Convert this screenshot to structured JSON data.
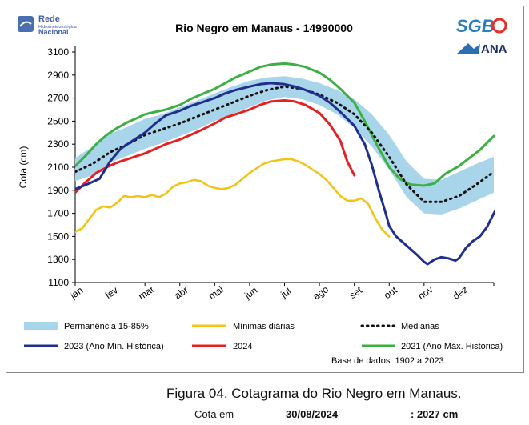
{
  "chart_data": {
    "type": "line",
    "title": "Rio Negro em Manaus - 14990000",
    "ylabel": "Cota (cm)",
    "xlabel": "",
    "ylim": [
      1100,
      3100
    ],
    "yticks": [
      1100,
      1300,
      1500,
      1700,
      1900,
      2100,
      2300,
      2500,
      2700,
      2900,
      3100
    ],
    "categories": [
      "jan",
      "fev",
      "mar",
      "abr",
      "mai",
      "jun",
      "jul",
      "ago",
      "set",
      "out",
      "nov",
      "dez"
    ],
    "grid": false,
    "legend_position": "bottom",
    "base_note": "Base de dados: 1902 a 2023",
    "band": {
      "name": "Permanência 15-85%",
      "color": "#a9d5ea",
      "upper": [
        [
          0,
          2180
        ],
        [
          0.5,
          2280
        ],
        [
          1,
          2390
        ],
        [
          1.5,
          2450
        ],
        [
          2,
          2520
        ],
        [
          2.5,
          2560
        ],
        [
          3,
          2620
        ],
        [
          3.5,
          2680
        ],
        [
          4,
          2740
        ],
        [
          4.5,
          2800
        ],
        [
          5,
          2850
        ],
        [
          5.5,
          2880
        ],
        [
          6,
          2890
        ],
        [
          6.5,
          2870
        ],
        [
          7,
          2830
        ],
        [
          7.5,
          2770
        ],
        [
          8,
          2690
        ],
        [
          8.5,
          2560
        ],
        [
          9,
          2380
        ],
        [
          9.5,
          2150
        ],
        [
          10,
          2000
        ],
        [
          10.5,
          1990
        ],
        [
          11,
          2060
        ],
        [
          11.5,
          2130
        ],
        [
          12,
          2190
        ]
      ],
      "lower": [
        [
          0,
          1980
        ],
        [
          0.5,
          2030
        ],
        [
          1,
          2140
        ],
        [
          1.5,
          2200
        ],
        [
          2,
          2260
        ],
        [
          2.5,
          2310
        ],
        [
          3,
          2370
        ],
        [
          3.5,
          2430
        ],
        [
          4,
          2500
        ],
        [
          4.5,
          2560
        ],
        [
          5,
          2620
        ],
        [
          5.5,
          2680
        ],
        [
          6,
          2710
        ],
        [
          6.5,
          2690
        ],
        [
          7,
          2640
        ],
        [
          7.5,
          2560
        ],
        [
          8,
          2440
        ],
        [
          8.5,
          2280
        ],
        [
          9,
          2080
        ],
        [
          9.5,
          1840
        ],
        [
          10,
          1700
        ],
        [
          10.5,
          1690
        ],
        [
          11,
          1740
        ],
        [
          11.5,
          1810
        ],
        [
          12,
          1880
        ]
      ]
    },
    "series": [
      {
        "name": "Mínimas diárias",
        "color": "#f0c419",
        "width": 2.6,
        "points": [
          [
            0,
            1540
          ],
          [
            0.2,
            1570
          ],
          [
            0.4,
            1650
          ],
          [
            0.6,
            1730
          ],
          [
            0.8,
            1760
          ],
          [
            1,
            1750
          ],
          [
            1.2,
            1790
          ],
          [
            1.4,
            1850
          ],
          [
            1.6,
            1840
          ],
          [
            1.8,
            1850
          ],
          [
            2,
            1840
          ],
          [
            2.2,
            1860
          ],
          [
            2.4,
            1840
          ],
          [
            2.6,
            1870
          ],
          [
            2.8,
            1930
          ],
          [
            3,
            1960
          ],
          [
            3.2,
            1970
          ],
          [
            3.4,
            1990
          ],
          [
            3.6,
            1980
          ],
          [
            3.8,
            1940
          ],
          [
            4,
            1920
          ],
          [
            4.2,
            1910
          ],
          [
            4.4,
            1920
          ],
          [
            4.6,
            1950
          ],
          [
            4.8,
            2000
          ],
          [
            5,
            2050
          ],
          [
            5.2,
            2090
          ],
          [
            5.4,
            2130
          ],
          [
            5.6,
            2150
          ],
          [
            5.8,
            2160
          ],
          [
            6,
            2170
          ],
          [
            6.2,
            2170
          ],
          [
            6.4,
            2150
          ],
          [
            6.6,
            2120
          ],
          [
            6.8,
            2080
          ],
          [
            7,
            2040
          ],
          [
            7.2,
            1990
          ],
          [
            7.4,
            1920
          ],
          [
            7.6,
            1850
          ],
          [
            7.8,
            1810
          ],
          [
            8,
            1810
          ],
          [
            8.2,
            1830
          ],
          [
            8.4,
            1780
          ],
          [
            8.6,
            1660
          ],
          [
            8.8,
            1560
          ],
          [
            9,
            1500
          ]
        ]
      },
      {
        "name": "Medianas",
        "color": "#111111",
        "width": 3,
        "dash": "1.5 5",
        "points": [
          [
            0,
            2060
          ],
          [
            0.5,
            2130
          ],
          [
            1,
            2230
          ],
          [
            1.5,
            2300
          ],
          [
            2,
            2380
          ],
          [
            2.5,
            2430
          ],
          [
            3,
            2480
          ],
          [
            3.5,
            2540
          ],
          [
            4,
            2600
          ],
          [
            4.5,
            2660
          ],
          [
            5,
            2720
          ],
          [
            5.5,
            2770
          ],
          [
            6,
            2800
          ],
          [
            6.5,
            2780
          ],
          [
            7,
            2730
          ],
          [
            7.5,
            2660
          ],
          [
            8,
            2560
          ],
          [
            8.5,
            2400
          ],
          [
            9,
            2190
          ],
          [
            9.5,
            1950
          ],
          [
            10,
            1800
          ],
          [
            10.5,
            1800
          ],
          [
            11,
            1850
          ],
          [
            11.5,
            1950
          ],
          [
            12,
            2060
          ]
        ]
      },
      {
        "name": "2023 (Ano Mín. Histórica)",
        "color": "#1f2f8f",
        "width": 3,
        "points": [
          [
            0,
            1910
          ],
          [
            0.4,
            1960
          ],
          [
            0.7,
            2000
          ],
          [
            1,
            2150
          ],
          [
            1.3,
            2260
          ],
          [
            1.6,
            2320
          ],
          [
            2,
            2400
          ],
          [
            2.3,
            2480
          ],
          [
            2.6,
            2550
          ],
          [
            3,
            2590
          ],
          [
            3.3,
            2630
          ],
          [
            3.6,
            2660
          ],
          [
            4,
            2700
          ],
          [
            4.3,
            2740
          ],
          [
            4.6,
            2770
          ],
          [
            5,
            2800
          ],
          [
            5.3,
            2820
          ],
          [
            5.6,
            2830
          ],
          [
            6,
            2820
          ],
          [
            6.3,
            2800
          ],
          [
            6.6,
            2770
          ],
          [
            7,
            2720
          ],
          [
            7.3,
            2660
          ],
          [
            7.6,
            2580
          ],
          [
            8,
            2460
          ],
          [
            8.3,
            2300
          ],
          [
            8.5,
            2120
          ],
          [
            8.7,
            1900
          ],
          [
            8.9,
            1700
          ],
          [
            9,
            1590
          ],
          [
            9.2,
            1500
          ],
          [
            9.5,
            1420
          ],
          [
            9.8,
            1340
          ],
          [
            10,
            1280
          ],
          [
            10.1,
            1260
          ],
          [
            10.3,
            1300
          ],
          [
            10.5,
            1320
          ],
          [
            10.7,
            1310
          ],
          [
            10.9,
            1290
          ],
          [
            11,
            1310
          ],
          [
            11.2,
            1400
          ],
          [
            11.4,
            1460
          ],
          [
            11.6,
            1500
          ],
          [
            11.8,
            1580
          ],
          [
            12,
            1700
          ],
          [
            12.3,
            1850
          ]
        ]
      },
      {
        "name": "2024",
        "color": "#e32222",
        "width": 3,
        "points": [
          [
            0,
            1880
          ],
          [
            0.3,
            1970
          ],
          [
            0.6,
            2050
          ],
          [
            0.9,
            2100
          ],
          [
            1.2,
            2140
          ],
          [
            1.5,
            2170
          ],
          [
            1.8,
            2200
          ],
          [
            2,
            2220
          ],
          [
            2.3,
            2260
          ],
          [
            2.6,
            2300
          ],
          [
            3,
            2340
          ],
          [
            3.3,
            2380
          ],
          [
            3.6,
            2420
          ],
          [
            4,
            2480
          ],
          [
            4.3,
            2530
          ],
          [
            4.6,
            2560
          ],
          [
            5,
            2600
          ],
          [
            5.3,
            2640
          ],
          [
            5.6,
            2670
          ],
          [
            6,
            2680
          ],
          [
            6.3,
            2670
          ],
          [
            6.6,
            2640
          ],
          [
            7,
            2570
          ],
          [
            7.3,
            2470
          ],
          [
            7.6,
            2330
          ],
          [
            7.8,
            2150
          ],
          [
            8,
            2030
          ]
        ]
      },
      {
        "name": "2021 (Ano Máx. Histórica)",
        "color": "#3cb043",
        "width": 3,
        "points": [
          [
            0,
            2110
          ],
          [
            0.3,
            2200
          ],
          [
            0.6,
            2300
          ],
          [
            0.9,
            2380
          ],
          [
            1.2,
            2440
          ],
          [
            1.5,
            2490
          ],
          [
            1.8,
            2530
          ],
          [
            2,
            2560
          ],
          [
            2.3,
            2580
          ],
          [
            2.6,
            2600
          ],
          [
            3,
            2640
          ],
          [
            3.3,
            2690
          ],
          [
            3.6,
            2730
          ],
          [
            4,
            2780
          ],
          [
            4.3,
            2830
          ],
          [
            4.6,
            2880
          ],
          [
            5,
            2930
          ],
          [
            5.3,
            2970
          ],
          [
            5.6,
            2990
          ],
          [
            6,
            3000
          ],
          [
            6.3,
            2990
          ],
          [
            6.6,
            2970
          ],
          [
            7,
            2920
          ],
          [
            7.3,
            2860
          ],
          [
            7.6,
            2780
          ],
          [
            8,
            2660
          ],
          [
            8.3,
            2500
          ],
          [
            8.6,
            2320
          ],
          [
            9,
            2100
          ],
          [
            9.3,
            2000
          ],
          [
            9.6,
            1950
          ],
          [
            10,
            1940
          ],
          [
            10.3,
            1960
          ],
          [
            10.6,
            2040
          ],
          [
            11,
            2110
          ],
          [
            11.3,
            2180
          ],
          [
            11.6,
            2250
          ],
          [
            12,
            2370
          ]
        ]
      }
    ]
  },
  "legend": {
    "band": "Permanência 15-85%",
    "min": "Mínimas diárias",
    "median": "Medianas",
    "y2023": "2023 (Ano Mín. Histórica)",
    "y2024": "2024",
    "y2021": "2021 (Ano Máx. Histórica)"
  },
  "logos": {
    "rede_line1": "Rede",
    "rede_line2": "Hidrometeorológica",
    "rede_line3": "Nacional",
    "sgb": "SGB",
    "ana": "ANA"
  },
  "caption": {
    "title": "Figura 04. Cotagrama do Rio Negro em Manaus.",
    "cota_label": "Cota em",
    "cota_date": "30/08/2024",
    "cota_value": ": 2027 cm"
  }
}
